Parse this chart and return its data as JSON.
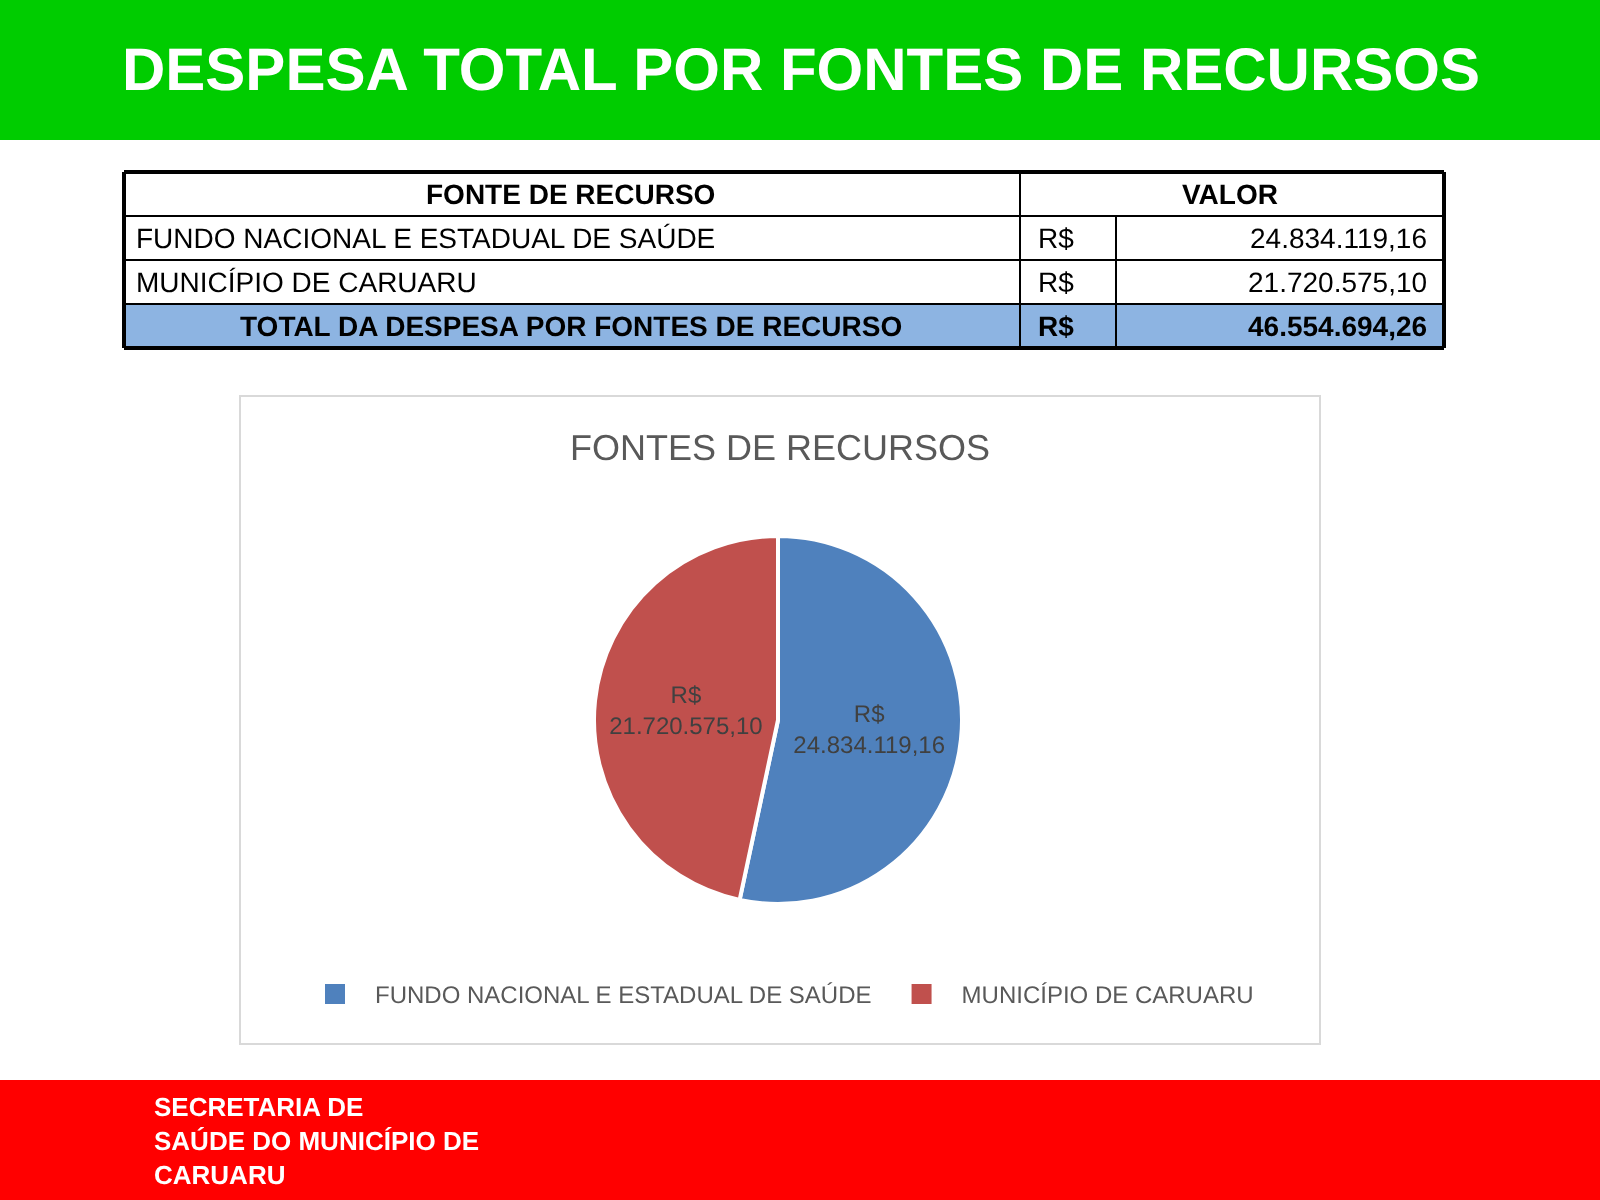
{
  "chart_data": {
    "type": "pie",
    "title": "DESPESA TOTAL POR FONTES DE RECURSOS",
    "subtitle": "FONTES DE RECURSOS",
    "categories": [
      "FUNDO NACIONAL E ESTADUAL DE SAÚDE",
      "MUNICÍPIO DE CARUARU"
    ],
    "values": [
      24834119.16,
      21720575.1
    ],
    "colors": [
      "#4f81bd",
      "#c0504d"
    ],
    "value_labels": [
      "R$\n24.834.119,16",
      "R$\n21.720.575,10"
    ],
    "legend": "bottom",
    "annotations": [
      "FONTE DE RECURSO",
      "VALOR",
      "FUNDO NACIONAL E ESTADUAL DE SAÚDE",
      "R$",
      "24.834.119,16",
      "MUNICÍPIO DE CARUARU",
      "R$",
      "21.720.575,10",
      "TOTAL DA DESPESA POR FONTES DE RECURSO",
      "R$",
      "46.554.694,26",
      "SECRETARIA DE\nSAÚDE DO MUNICÍPIO DE\nCARUARU"
    ]
  }
}
